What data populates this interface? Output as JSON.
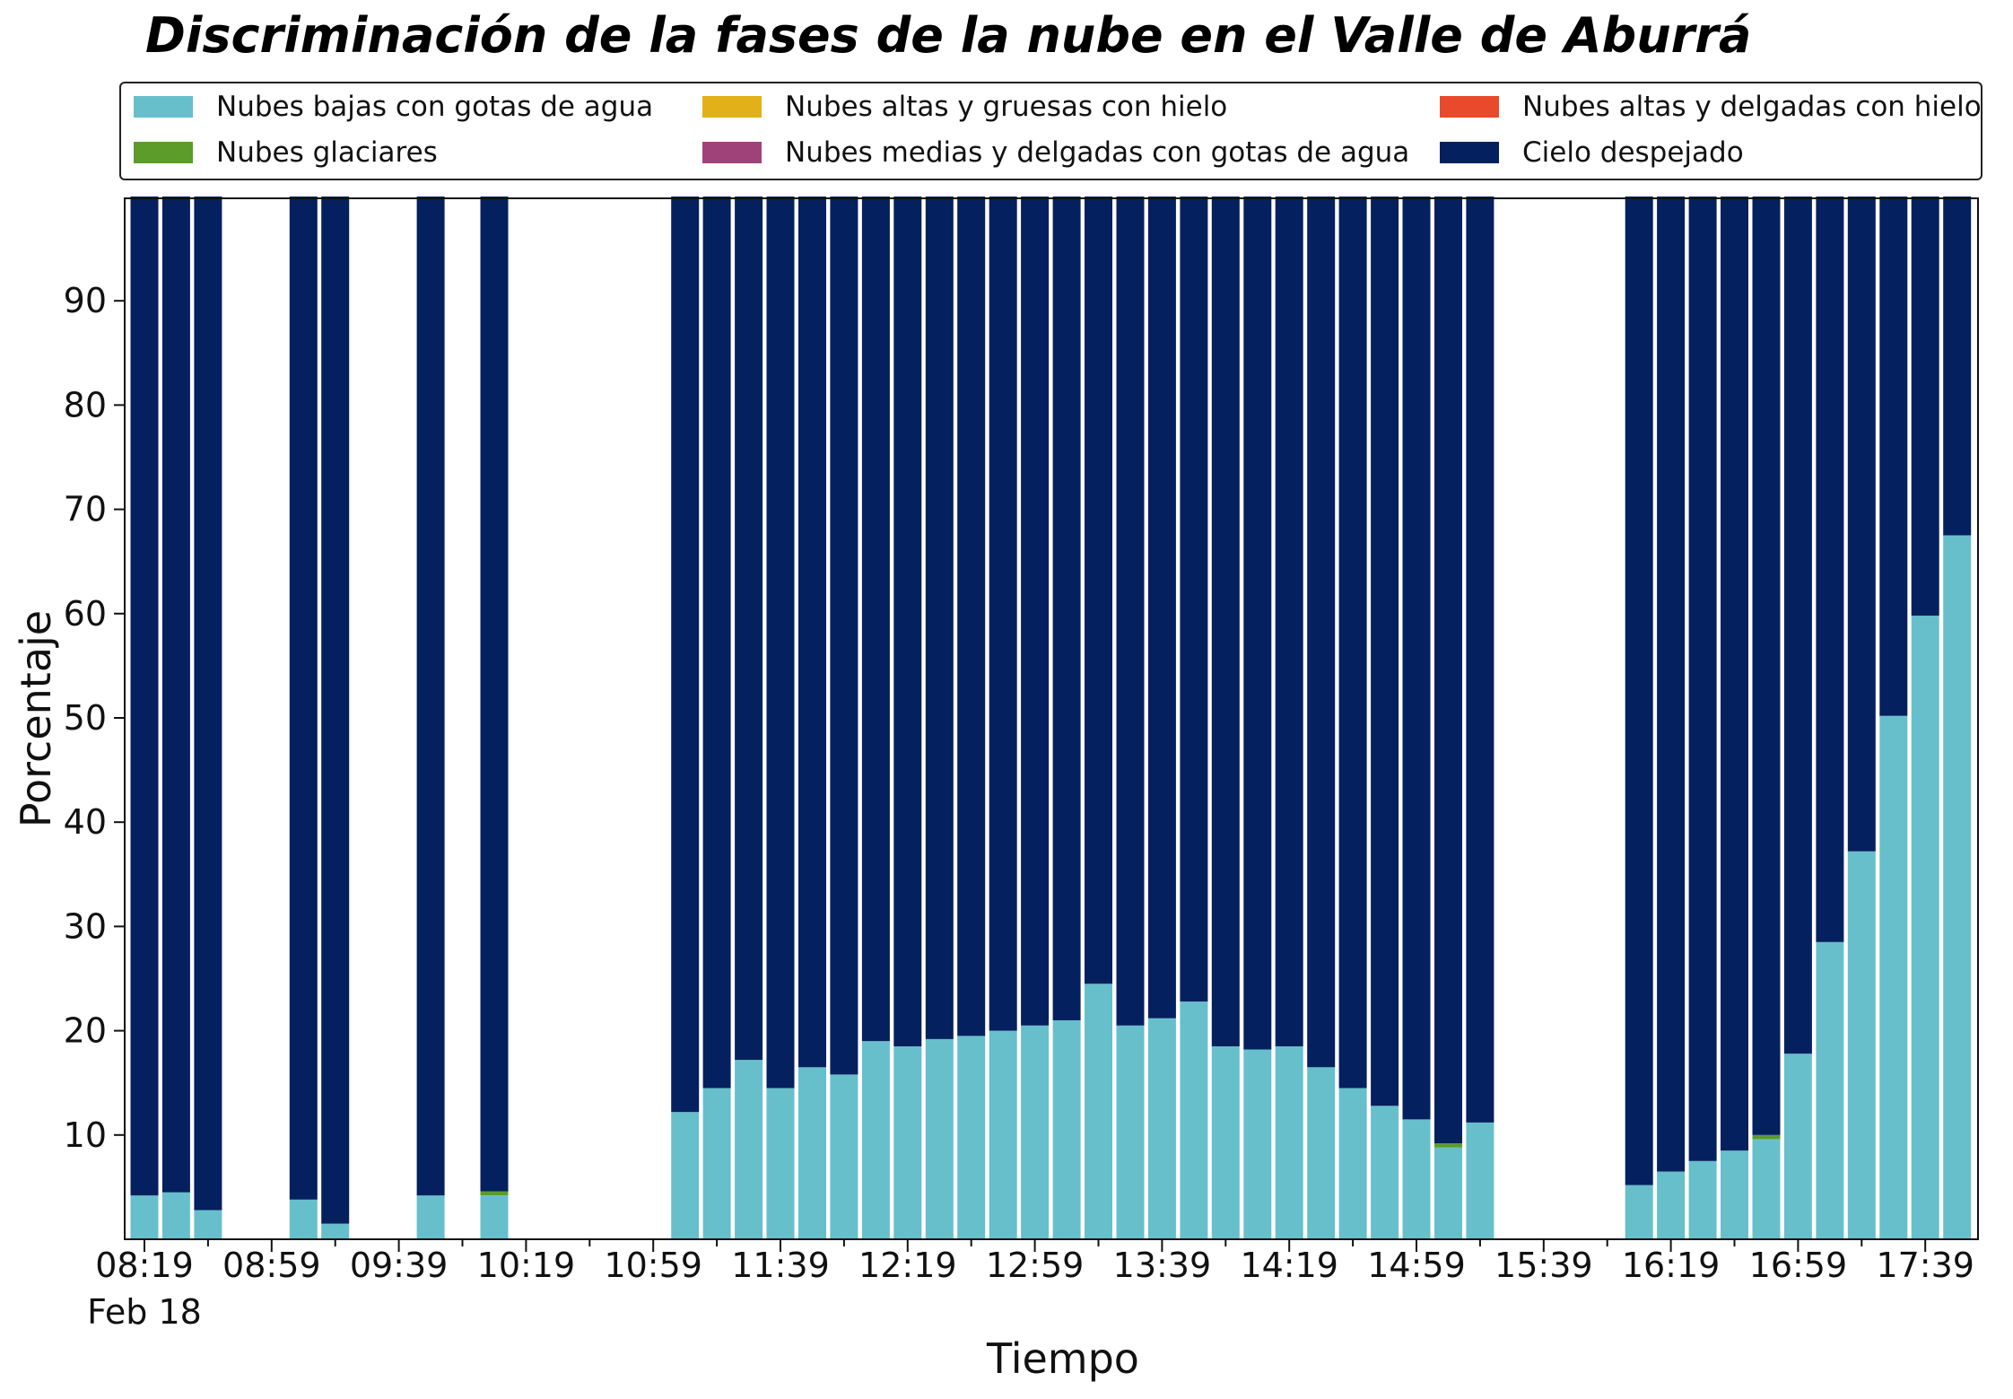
{
  "chart_data": {
    "type": "bar",
    "stacked": true,
    "title": "Discriminación de la fases de la nube en el Valle de Aburrá",
    "xlabel": "Tiempo",
    "ylabel": "Porcentaje",
    "x_start": "08:19",
    "x_step_minutes": 10,
    "ylim": [
      0,
      100
    ],
    "y_ticks": [
      10,
      20,
      30,
      40,
      50,
      60,
      70,
      80,
      90
    ],
    "x_ticks": [
      "08:19",
      "08:59",
      "09:39",
      "10:19",
      "10:59",
      "11:39",
      "12:19",
      "12:59",
      "13:39",
      "14:19",
      "14:59",
      "15:39",
      "16:19",
      "16:59",
      "17:39"
    ],
    "x_tick_sublabel": "Feb 18",
    "grid": false,
    "legend_position": "top",
    "series": [
      {
        "name": "Nubes bajas con gotas de agua",
        "color": "#67bfcb",
        "values": [
          4.2,
          4.5,
          2.8,
          0,
          0,
          3.8,
          1.5,
          0,
          0,
          4.2,
          0,
          4.2,
          0,
          0,
          0,
          0,
          0,
          12.2,
          14.5,
          17.2,
          14.5,
          16.5,
          15.8,
          19.0,
          18.5,
          19.2,
          19.5,
          20.0,
          20.5,
          21.0,
          24.5,
          20.5,
          21.2,
          22.8,
          18.5,
          18.2,
          18.5,
          16.5,
          14.5,
          12.8,
          11.5,
          8.8,
          11.2,
          0,
          0,
          0,
          0,
          5.2,
          6.5,
          7.5,
          8.5,
          9.6,
          17.8,
          28.5,
          37.2,
          50.2,
          59.8,
          67.5
        ]
      },
      {
        "name": "Nubes glaciares",
        "color": "#5b9c2b",
        "values": [
          0,
          0,
          0,
          0,
          0,
          0,
          0,
          0,
          0,
          0,
          0,
          0.4,
          0,
          0,
          0,
          0,
          0,
          0,
          0,
          0,
          0,
          0,
          0,
          0,
          0,
          0,
          0,
          0,
          0,
          0,
          0,
          0,
          0,
          0,
          0,
          0,
          0,
          0,
          0,
          0,
          0,
          0.4,
          0,
          0,
          0,
          0,
          0,
          0,
          0,
          0,
          0,
          0.4,
          0,
          0,
          0,
          0,
          0,
          0
        ]
      },
      {
        "name": "Nubes altas y gruesas con hielo",
        "color": "#e2b018",
        "values": [
          0,
          0,
          0,
          0,
          0,
          0,
          0,
          0,
          0,
          0,
          0,
          0,
          0,
          0,
          0,
          0,
          0,
          0,
          0,
          0,
          0,
          0,
          0,
          0,
          0,
          0,
          0,
          0,
          0,
          0,
          0,
          0,
          0,
          0,
          0,
          0,
          0,
          0,
          0,
          0,
          0,
          0,
          0,
          0,
          0,
          0,
          0,
          0,
          0,
          0,
          0,
          0,
          0,
          0,
          0,
          0,
          0,
          0
        ]
      },
      {
        "name": "Nubes medias y delgadas con gotas de agua",
        "color": "#a0427a",
        "values": [
          0,
          0,
          0,
          0,
          0,
          0,
          0,
          0,
          0,
          0,
          0,
          0,
          0,
          0,
          0,
          0,
          0,
          0,
          0,
          0,
          0,
          0,
          0,
          0,
          0,
          0,
          0,
          0,
          0,
          0,
          0,
          0,
          0,
          0,
          0,
          0,
          0,
          0,
          0,
          0,
          0,
          0,
          0,
          0,
          0,
          0,
          0,
          0,
          0,
          0,
          0,
          0,
          0,
          0,
          0,
          0,
          0,
          0
        ]
      },
      {
        "name": "Nubes altas y delgadas con hielo",
        "color": "#e84a2b",
        "values": [
          0,
          0,
          0,
          0,
          0,
          0,
          0,
          0,
          0,
          0,
          0,
          0,
          0,
          0,
          0,
          0,
          0,
          0,
          0,
          0,
          0,
          0,
          0,
          0,
          0,
          0,
          0,
          0,
          0,
          0,
          0,
          0,
          0,
          0,
          0,
          0,
          0,
          0,
          0,
          0,
          0,
          0,
          0,
          0,
          0,
          0,
          0,
          0,
          0,
          0,
          0,
          0,
          0,
          0,
          0,
          0,
          0,
          0
        ]
      },
      {
        "name": "Cielo despejado",
        "color": "#05205e",
        "values": [
          95.8,
          95.5,
          97.2,
          0,
          0,
          96.2,
          98.5,
          0,
          0,
          95.8,
          0,
          95.4,
          0,
          0,
          0,
          0,
          0,
          87.8,
          85.5,
          82.8,
          85.5,
          83.5,
          84.2,
          81.0,
          81.5,
          80.8,
          80.5,
          80.0,
          79.5,
          79.0,
          75.5,
          79.5,
          78.8,
          77.2,
          81.5,
          81.8,
          81.5,
          83.5,
          85.5,
          87.2,
          88.5,
          90.8,
          88.8,
          0,
          0,
          0,
          0,
          94.8,
          93.5,
          92.5,
          91.5,
          90.0,
          82.2,
          71.5,
          62.8,
          49.8,
          40.2,
          32.5
        ]
      }
    ]
  }
}
